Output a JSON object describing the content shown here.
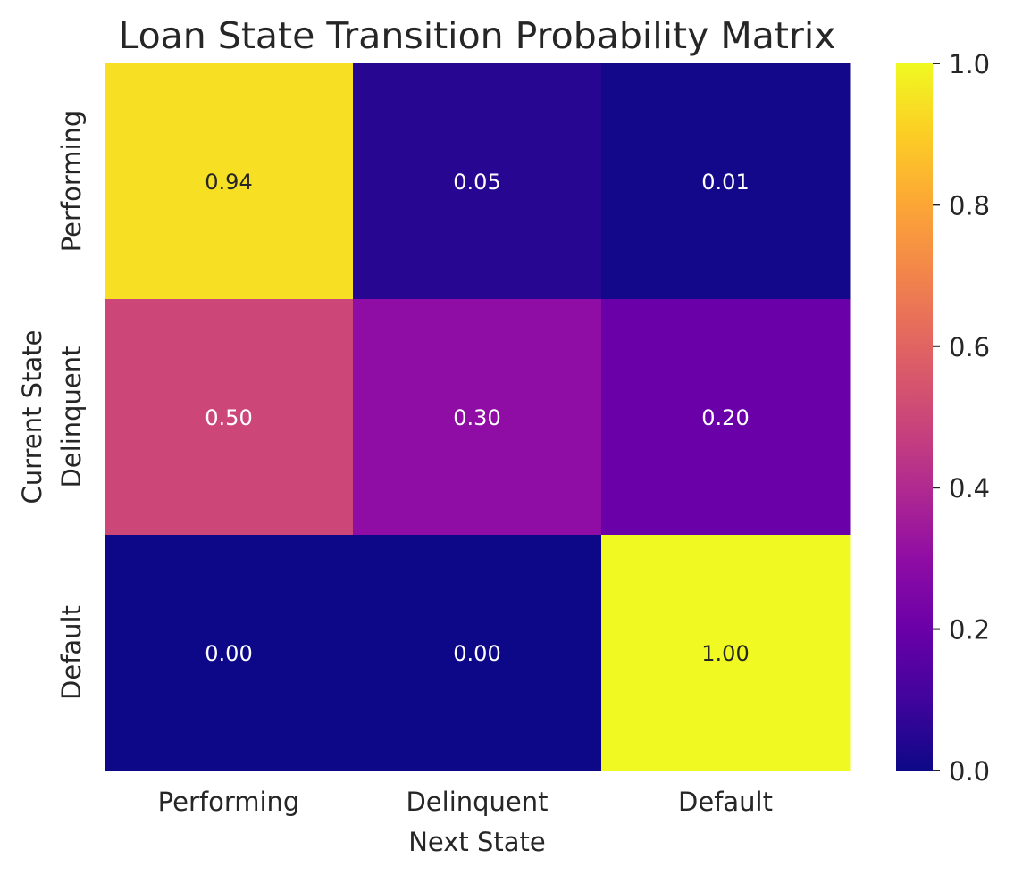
{
  "chart_data": {
    "type": "heatmap",
    "title": "Loan State Transition Probability Matrix",
    "xlabel": "Next State",
    "ylabel": "Current State",
    "x_categories": [
      "Performing",
      "Delinquent",
      "Default"
    ],
    "y_categories": [
      "Performing",
      "Delinquent",
      "Default"
    ],
    "values": [
      [
        0.94,
        0.05,
        0.01
      ],
      [
        0.5,
        0.3,
        0.2
      ],
      [
        0.0,
        0.0,
        1.0
      ]
    ],
    "annotations": [
      [
        "0.94",
        "0.05",
        "0.01"
      ],
      [
        "0.50",
        "0.30",
        "0.20"
      ],
      [
        "0.00",
        "0.00",
        "1.00"
      ]
    ],
    "colormap": "plasma",
    "vmin": 0.0,
    "vmax": 1.0,
    "colorbar_ticks": [
      0.0,
      0.2,
      0.4,
      0.6,
      0.8,
      1.0
    ],
    "colorbar_tick_labels": [
      "0.0",
      "0.2",
      "0.4",
      "0.6",
      "0.8",
      "1.0"
    ]
  }
}
